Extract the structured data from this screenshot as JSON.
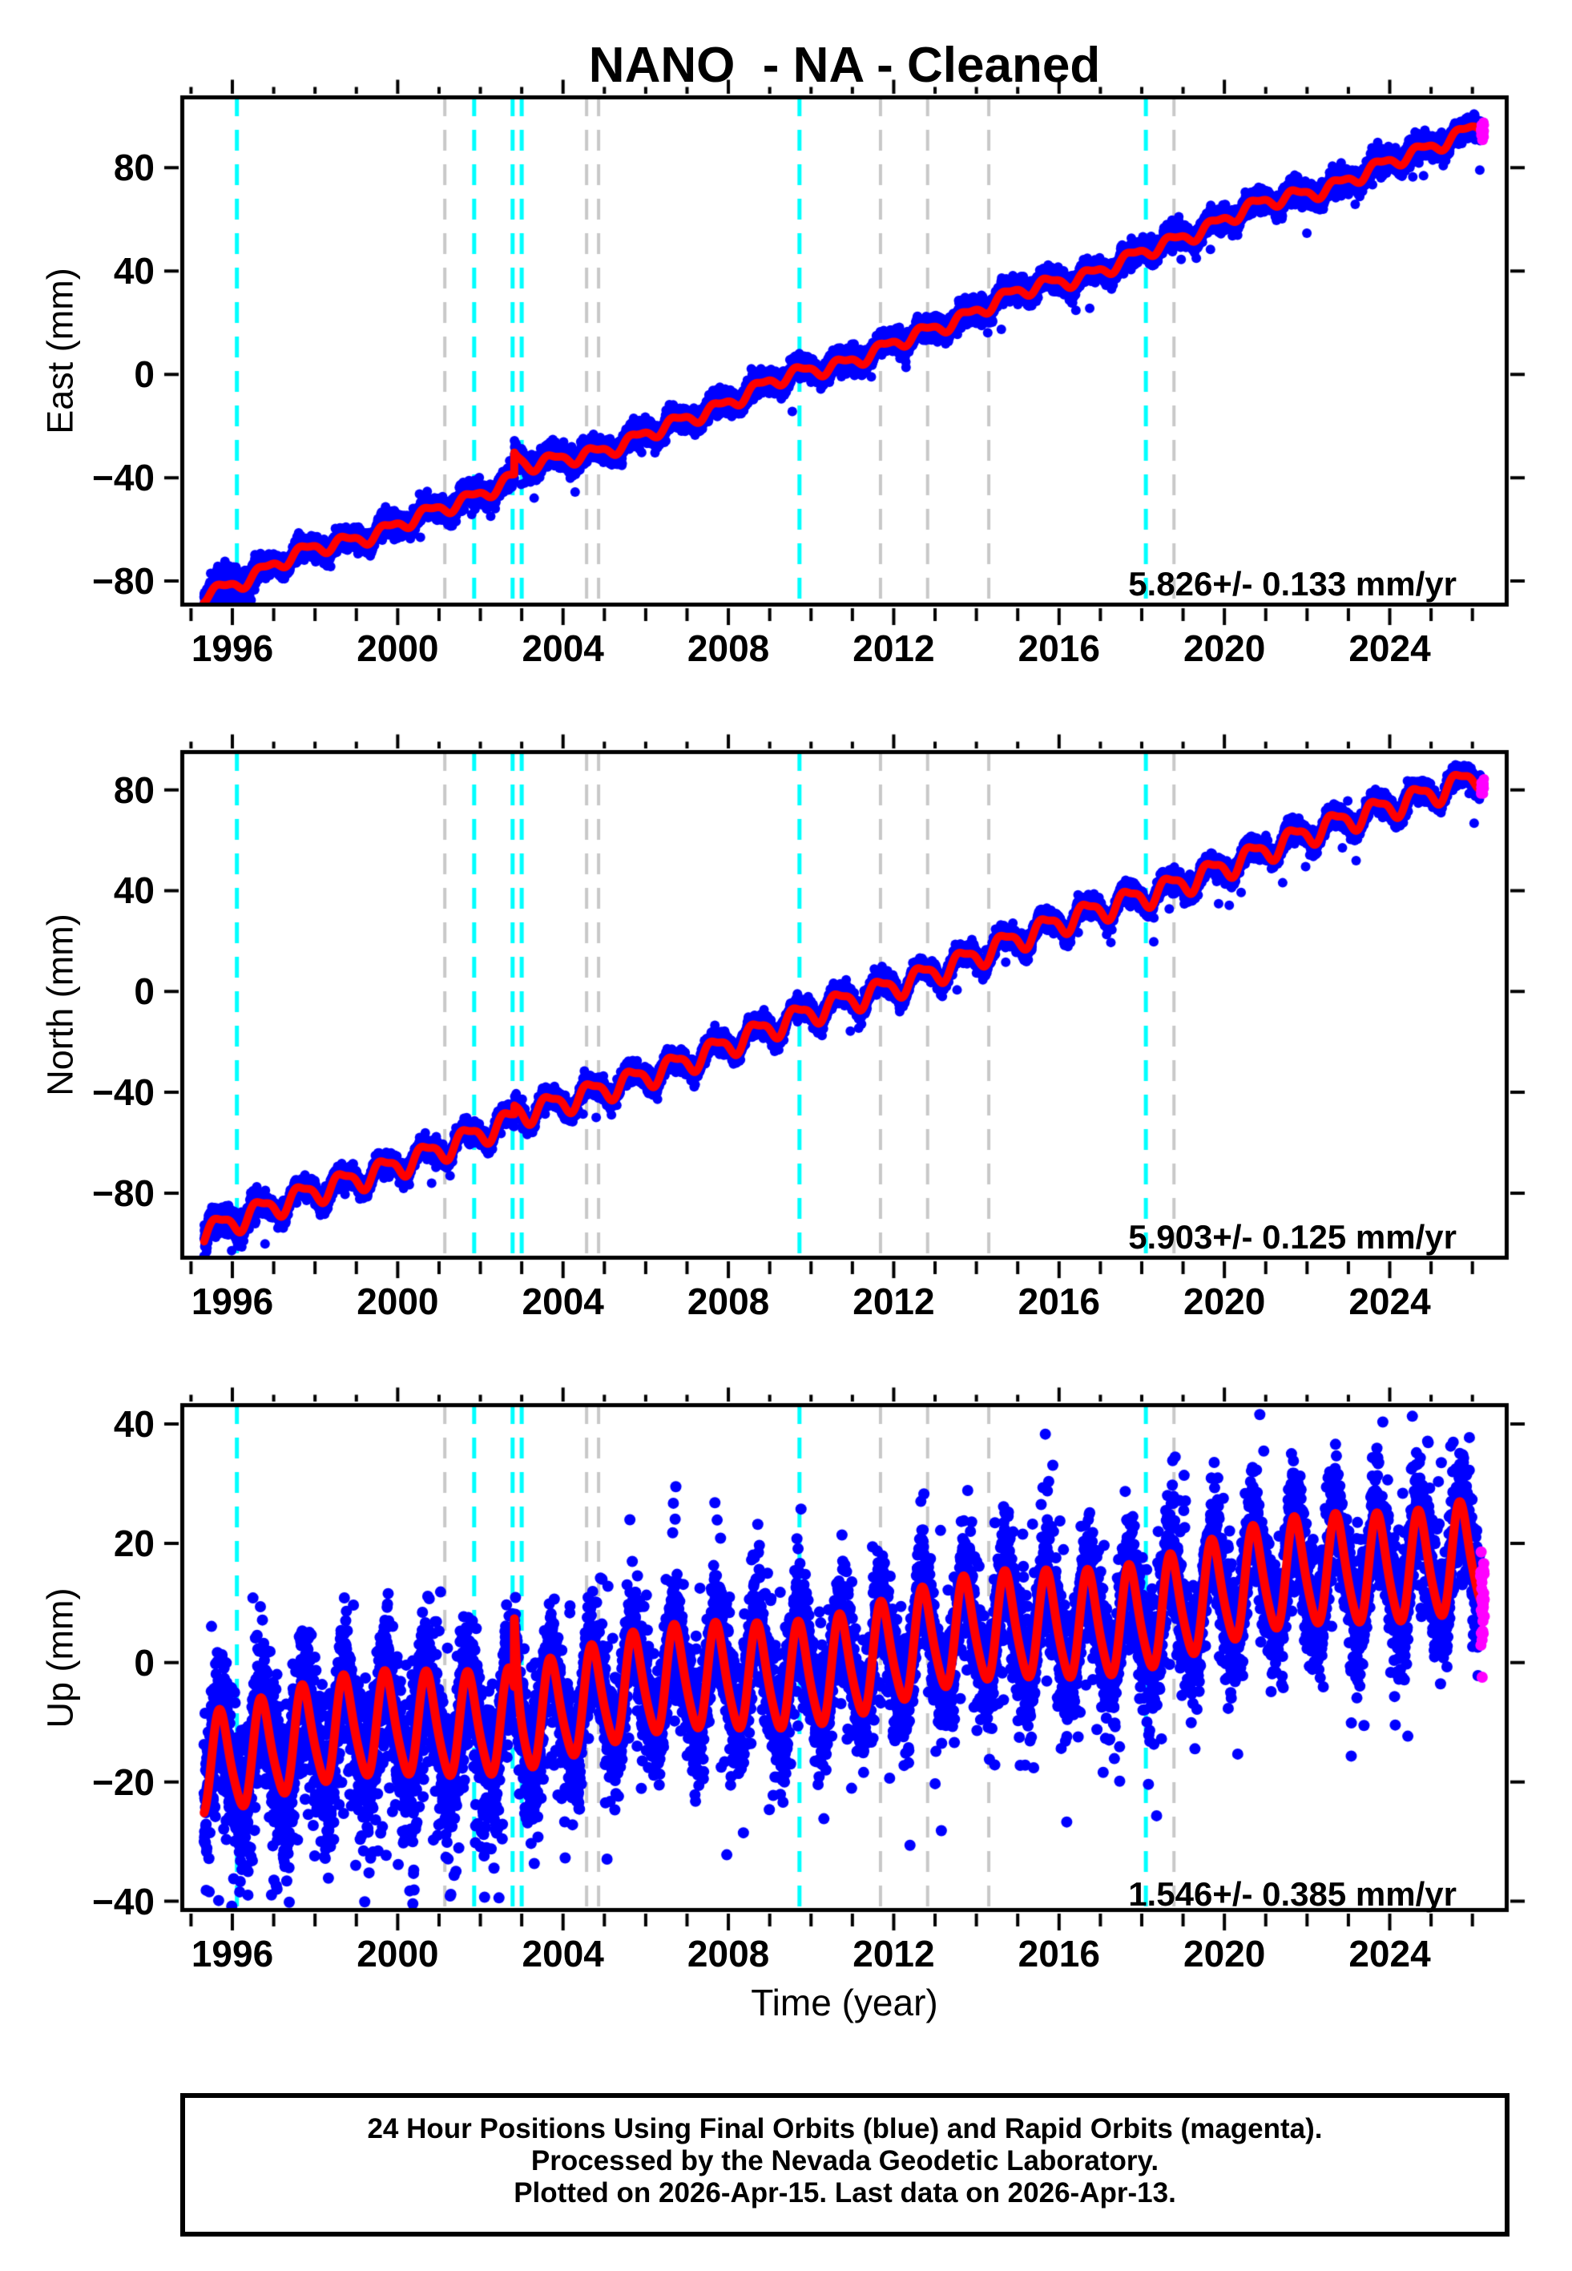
{
  "title": "NANO  - NA - Cleaned",
  "xlabel": "Time (year)",
  "caption": {
    "lines": [
      "24 Hour Positions Using Final Orbits (blue) and Rapid Orbits (magenta).",
      "Processed by the Nevada Geodetic Laboratory.",
      "Plotted on 2026-Apr-15. Last data on 2026-Apr-13."
    ]
  },
  "colors": {
    "final_orbit_points": "#0000ff",
    "rapid_orbit_points": "#ff00ff",
    "model_fit_line": "#ff0000",
    "earthquake_event_line": "#00ffff",
    "equipment_change_line": "#c8c8c8",
    "axis": "#000000",
    "background": "#ffffff"
  },
  "x_axis": {
    "range_years": [
      1994.74,
      2026.87
    ],
    "ticks_major": [
      1996,
      2000,
      2004,
      2008,
      2012,
      2016,
      2020,
      2024
    ],
    "minor_step_years": 1
  },
  "event_lines": {
    "earthquakes_years": [
      1996.11,
      2001.85,
      2002.78,
      2003.0,
      2009.72,
      2018.1
    ],
    "equipment_changes_years": [
      2001.14,
      2004.57,
      2004.86,
      2011.68,
      2012.82,
      2014.3,
      2018.78
    ]
  },
  "chart_data": [
    {
      "type": "scatter",
      "component": "East",
      "ylabel": "East (mm)",
      "ylim_mm": [
        -89.9,
        108.0
      ],
      "yticks_mm": [
        -80,
        -40,
        0,
        40,
        80
      ],
      "rate_label": "5.826+/- 0.133 mm/yr",
      "series": {
        "start_year": 1995.315,
        "end_year": 2026.29,
        "rapid_orbits_after_year": 2026.2,
        "start_mm": -84.7,
        "rate_mm_per_yr": 5.826,
        "seasonal_amp_mm": 2.3,
        "seasonal_peak_yearfrac": 0.75,
        "noise_sigma_mm": 2.2,
        "transient": {
          "year": 2002.82,
          "amp_mm": 8.5,
          "decay_yr": 0.28
        }
      }
    },
    {
      "type": "scatter",
      "component": "North",
      "ylabel": "North (mm)",
      "ylim_mm": [
        -106.4,
        95.8
      ],
      "yticks_mm": [
        -80,
        -40,
        0,
        40,
        80
      ],
      "rate_label": "5.903+/- 0.125 mm/yr",
      "series": {
        "start_year": 1995.315,
        "end_year": 2026.29,
        "rapid_orbits_after_year": 2026.2,
        "start_mm": -95.8,
        "rate_mm_per_yr": 5.903,
        "seasonal_amp_mm": 4.3,
        "seasonal_peak_yearfrac": 0.67,
        "noise_sigma_mm": 2.0,
        "transient": {
          "year": 2002.82,
          "amp_mm": 3.5,
          "decay_yr": 0.3
        }
      }
    },
    {
      "type": "scatter",
      "component": "Up",
      "ylabel": "Up (mm)",
      "ylim_mm": [
        -41.8,
        43.5
      ],
      "yticks_mm": [
        -40,
        -20,
        0,
        20,
        40
      ],
      "rate_label": "1.546+/- 0.385 mm/yr",
      "series": {
        "start_year": 1995.315,
        "end_year": 2026.29,
        "rapid_orbits_after_year": 2026.2,
        "start_mm": -16.0,
        "rate_mm_per_yr": 0.95,
        "accel_mm_per_yr2": 0.0062,
        "seasonal_amp_mm": 8.3,
        "seasonal_peak_yearfrac": 0.72,
        "noise_sigma_mm": 4.6,
        "transient": {
          "year": 2002.82,
          "amp_mm": 12.0,
          "decay_yr": 0.08
        }
      }
    }
  ]
}
